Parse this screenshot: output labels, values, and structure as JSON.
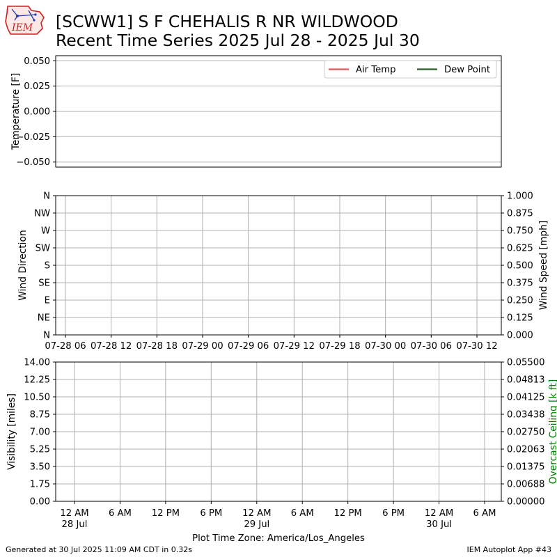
{
  "header": {
    "logo_text": "IEM",
    "title_line1": "[SCWW1] S F CHEHALIS R NR WILDWOOD",
    "title_line2": "Recent Time Series 2025 Jul 28 - 2025 Jul 30"
  },
  "footer": {
    "left": "Generated at 30 Jul 2025 11:09 AM CDT in 0.32s",
    "right": "IEM Autoplot App #43"
  },
  "colors": {
    "air_temp": "#e05a5a",
    "dew_point": "#2b5e2b",
    "grid": "#b0b0b0",
    "ceiling_label": "#008000"
  },
  "chart_data": [
    {
      "type": "line",
      "title": "",
      "ylabel": "Temperature [F]",
      "ylim": [
        -0.055,
        0.055
      ],
      "yticks": [
        "0.050",
        "0.025",
        "0.000",
        "−0.025",
        "−0.050"
      ],
      "ytick_values": [
        0.05,
        0.025,
        0.0,
        -0.025,
        -0.05
      ],
      "grid": "y",
      "legend": "top-right",
      "series": [
        {
          "name": "Air Temp",
          "values": [],
          "color": "#e05a5a"
        },
        {
          "name": "Dew Point",
          "values": [],
          "color": "#2b5e2b"
        }
      ]
    },
    {
      "type": "scatter",
      "ylabel": "Wind Direction",
      "ylabel_right": "Wind Speed [mph]",
      "yticks": [
        "N",
        "NE",
        "E",
        "SE",
        "S",
        "SW",
        "W",
        "NW",
        "N"
      ],
      "ylim": [
        0,
        360
      ],
      "ylim_right": [
        0,
        1.0
      ],
      "yticks_right": [
        "0.000",
        "0.125",
        "0.250",
        "0.375",
        "0.500",
        "0.625",
        "0.750",
        "0.875",
        "1.000"
      ],
      "xlim": [
        "2025-07-28 03:30",
        "2025-07-30 15:00"
      ],
      "xticks": [
        "07-28 06",
        "07-28 12",
        "07-28 18",
        "07-29 00",
        "07-29 06",
        "07-29 12",
        "07-29 18",
        "07-30 00",
        "07-30 06",
        "07-30 12"
      ],
      "xtick_hours": [
        2.5,
        8.5,
        14.5,
        20.5,
        26.5,
        32.5,
        38.5,
        44.5,
        50.5,
        56.5
      ],
      "grid": "both",
      "series": []
    },
    {
      "type": "line",
      "ylabel": "Visibility [miles]",
      "ylabel_right": "Overcast Ceiling [k ft]",
      "ylim": [
        0,
        14
      ],
      "yticks": [
        "0.00",
        "1.75",
        "3.50",
        "5.25",
        "7.00",
        "8.75",
        "10.50",
        "12.25",
        "14.00"
      ],
      "ylim_right": [
        0,
        0.055
      ],
      "yticks_right": [
        "0.00000",
        "0.00688",
        "0.01375",
        "0.02063",
        "0.02750",
        "0.03438",
        "0.04125",
        "0.04813",
        "0.05500"
      ],
      "xlim": [
        "2025-07-28 00:00",
        "2025-07-30 07:00"
      ],
      "xticks": [
        "12 AM",
        "6 AM",
        "12 PM",
        "6 PM",
        "12 AM",
        "6 AM",
        "12 PM",
        "6 PM",
        "12 AM",
        "6 AM"
      ],
      "xtick_sublabels": [
        "28 Jul",
        "",
        "",
        "",
        "29 Jul",
        "",
        "",
        "",
        "30 Jul",
        ""
      ],
      "xtick_hours": [
        0,
        6,
        12,
        18,
        24,
        30,
        36,
        42,
        48,
        54
      ],
      "xlabel": "Plot Time Zone: America/Los_Angeles",
      "grid": "both",
      "series": []
    }
  ]
}
